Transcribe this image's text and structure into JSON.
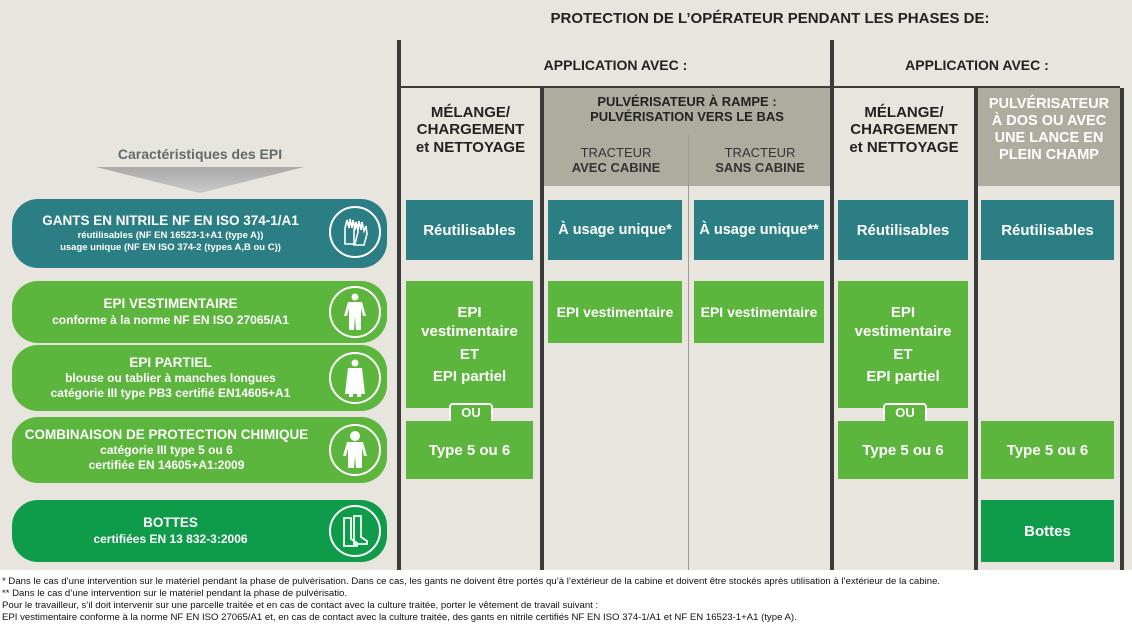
{
  "header": {
    "top_title": "PROTECTION DE L’OPÉRATEUR PENDANT LES PHASES DE:",
    "application_1": "APPLICATION AVEC :",
    "application_2": "APPLICATION AVEC :",
    "mix_1": [
      "MÉLANGE/",
      "CHARGEMENT",
      "et NETTOYAGE"
    ],
    "rampe": [
      "PULVÉRISATEUR À RAMPE :",
      "PULVÉRISATION VERS LE BAS"
    ],
    "tracteur_cabine": [
      "TRACTEUR",
      "AVEC CABINE"
    ],
    "tracteur_sans": [
      "TRACTEUR",
      "SANS CABINE"
    ],
    "mix_2": [
      "MÉLANGE/",
      "CHARGEMENT",
      "et NETTOYAGE"
    ],
    "dos": [
      "PULVÉRISATEUR",
      "À DOS OU AVEC",
      "UNE LANCE EN",
      "PLEIN CHAMP"
    ],
    "caracteristiques": "Caractéristiques des EPI"
  },
  "rows": {
    "gants": {
      "title": "GANTS EN NITRILE NF EN ISO 374-1/A1",
      "sub1": "réutilisables (NF EN 16523-1+A1 (type A))",
      "sub2": "usage unique (NF EN ISO 374-2 (types A,B ou C))",
      "icon": "gloves-icon"
    },
    "vest": {
      "title": "EPI VESTIMENTAIRE",
      "sub1": "conforme à la norme NF EN ISO 27065/A1",
      "icon": "coverall-icon"
    },
    "partiel": {
      "title": "EPI PARTIEL",
      "sub1": "blouse ou tablier à manches longues",
      "sub2": "catégorie III type PB3 certifié EN14605+A1",
      "icon": "apron-icon"
    },
    "combi": {
      "title": "COMBINAISON DE PROTECTION CHIMIQUE",
      "sub1": "catégorie III type 5 ou 6",
      "sub2": "certifiée EN 14605+A1:2009",
      "icon": "hazmat-suit-icon"
    },
    "bottes": {
      "title": "BOTTES",
      "sub1": "certifiées EN 13 832-3:2006",
      "icon": "boots-icon"
    }
  },
  "cells": {
    "reutilisables": "Réutilisables",
    "usage_unique_1": "À usage unique*",
    "usage_unique_2": "À usage unique**",
    "epi_vest_block": [
      "EPI",
      "vestimentaire",
      "ET",
      "EPI partiel"
    ],
    "epi_vest_single": "EPI vestimentaire",
    "ou": "OU",
    "type56": "Type 5 ou 6",
    "bottes": "Bottes"
  },
  "footnotes": [
    "* Dans le cas d’une intervention sur le matériel pendant la phase de pulvérisation. Dans ce cas, les gants ne doivent être portés qu’à l’extérieur de la cabine et doivent être stockés après utilisation à l’extérieur de la cabine.",
    "** Dans le cas d’une intervention sur le matériel pendant la phase de pulvérisatio.",
    "Pour le travailleur, s’il doit intervenir sur une parcelle traitée et en cas de contact avec la culture traitée, porter le vêtement de travail suivant :",
    "EPI vestimentaire conforme à la norme NF EN ISO 27065/A1 et, en cas de contact avec la culture traitée, des gants en nitrile certifiés NF EN ISO 374-1/A1 et NF EN 16523-1+A1 (type A)."
  ],
  "colors": {
    "teal": "#2b7f84",
    "green": "#5cb53c",
    "dark_green": "#0f9c4a",
    "panel": "#e7e5dd",
    "header_band": "#aeac9f"
  }
}
